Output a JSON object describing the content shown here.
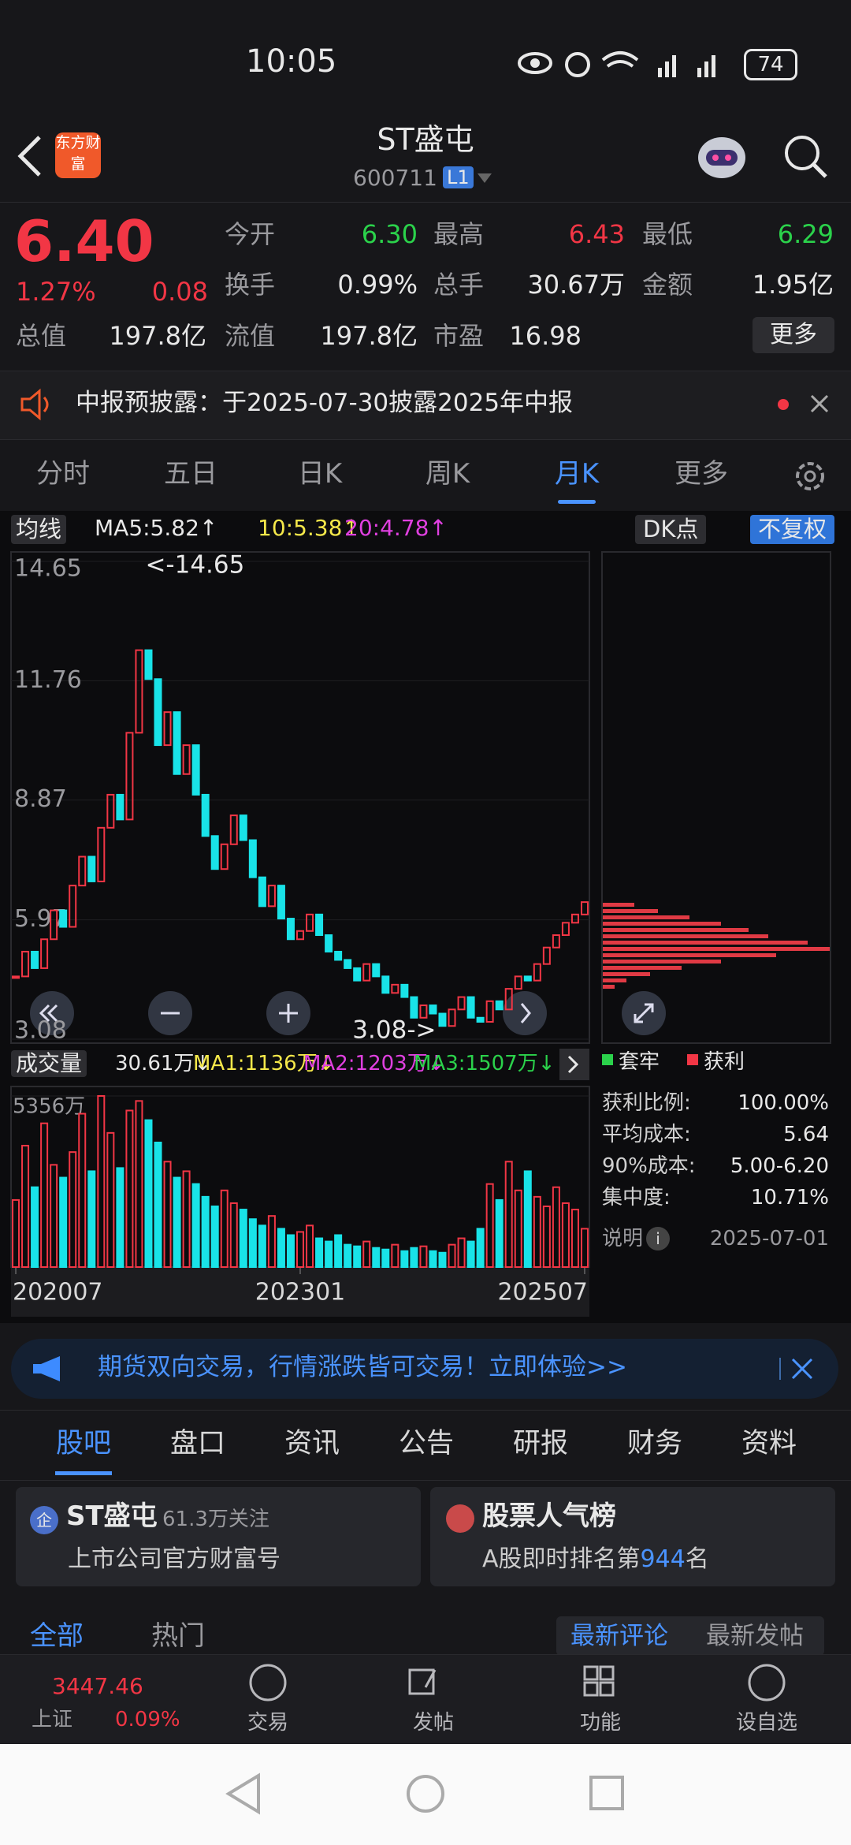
{
  "status_bar": {
    "time": "10:05",
    "battery": "74"
  },
  "header": {
    "logo": "东方财富",
    "title": "ST盛屯",
    "code": "600711",
    "level": "L1"
  },
  "quote": {
    "price": "6.40",
    "change_pct": "1.27%",
    "change": "0.08",
    "color": "#f23645",
    "stats": [
      {
        "label": "今开",
        "value": "6.30",
        "color": "#2bd24b"
      },
      {
        "label": "最高",
        "value": "6.43",
        "color": "#f23645"
      },
      {
        "label": "最低",
        "value": "6.29",
        "color": "#2bd24b"
      },
      {
        "label": "换手",
        "value": "0.99%",
        "color": "#e8e8e8"
      },
      {
        "label": "总手",
        "value": "30.67万",
        "color": "#e8e8e8"
      },
      {
        "label": "金额",
        "value": "1.95亿",
        "color": "#e8e8e8"
      },
      {
        "label": "总值",
        "value": "197.8亿",
        "color": "#e8e8e8"
      },
      {
        "label": "流值",
        "value": "197.8亿",
        "color": "#e8e8e8"
      },
      {
        "label": "市盈",
        "value": "16.98",
        "color": "#e8e8e8"
      }
    ],
    "more": "更多"
  },
  "notice": "中报预披露：于2025-07-30披露2025年中报",
  "period_tabs": [
    "分时",
    "五日",
    "日K",
    "周K",
    "月K",
    "更多"
  ],
  "active_period": 4,
  "indicators": {
    "ma_label": "均线",
    "ma5": "MA5:5.82↑",
    "ma10": "10:5.38↑",
    "ma20": "20:4.78↑",
    "dk": "DK点",
    "adjust": "不复权"
  },
  "chart": {
    "type": "candlestick",
    "ylim": [
      3.08,
      14.65
    ],
    "yticks": [
      14.65,
      11.76,
      8.87,
      5.97,
      3.08
    ],
    "high_note": "<-14.65",
    "low_note": "3.08->",
    "up_color": "#f23645",
    "down_color": "#19e3e8",
    "categories": [
      "202007",
      null,
      null,
      null,
      null,
      null,
      null,
      null,
      null,
      null,
      null,
      null,
      null,
      null,
      null,
      null,
      null,
      null,
      null,
      null,
      null,
      null,
      null,
      null,
      null,
      null,
      null,
      null,
      null,
      null,
      "202301",
      null,
      null,
      null,
      null,
      null,
      null,
      null,
      null,
      null,
      null,
      null,
      null,
      null,
      null,
      null,
      null,
      null,
      null,
      null,
      null,
      null,
      null,
      null,
      null,
      null,
      null,
      null,
      null,
      null,
      "202507"
    ],
    "close": [
      4.6,
      5.2,
      4.8,
      5.5,
      6.2,
      5.8,
      6.8,
      7.5,
      6.9,
      8.2,
      9.0,
      8.4,
      10.5,
      12.5,
      11.8,
      10.2,
      11.0,
      9.5,
      10.2,
      9.0,
      8.0,
      7.2,
      7.8,
      8.5,
      7.9,
      7.0,
      6.3,
      6.8,
      6.0,
      5.5,
      5.7,
      6.1,
      5.6,
      5.2,
      5.0,
      4.8,
      4.5,
      4.9,
      4.6,
      4.2,
      4.4,
      4.1,
      3.6,
      3.9,
      3.7,
      3.4,
      3.8,
      4.1,
      3.6,
      3.5,
      4.0,
      3.8,
      4.3,
      4.6,
      4.5,
      4.9,
      5.3,
      5.6,
      5.9,
      6.1,
      6.4
    ]
  },
  "volume": {
    "label": "成交量",
    "current": "30.61万↓",
    "ma1": "MA1:1136万↓",
    "ma2": "MA2:1203万↓",
    "ma3": "MA3:1507万↓",
    "ylim": [
      0,
      5356
    ],
    "yticks": [
      {
        "value": 5356,
        "label": "5356万"
      }
    ],
    "values": [
      2100,
      3800,
      2500,
      4500,
      3200,
      2800,
      3600,
      4800,
      3000,
      5356,
      4200,
      3100,
      4900,
      5200,
      4600,
      3900,
      3300,
      2800,
      3000,
      2600,
      2200,
      1900,
      2400,
      2000,
      1800,
      1500,
      1300,
      1600,
      1200,
      1000,
      1100,
      1300,
      900,
      800,
      1000,
      700,
      650,
      800,
      600,
      550,
      700,
      500,
      600,
      650,
      500,
      450,
      700,
      900,
      800,
      1200,
      2600,
      2100,
      3300,
      2400,
      3000,
      2200,
      1900,
      2500,
      2000,
      1800,
      1200
    ]
  },
  "chips": {
    "legend": [
      "套牢",
      "获利"
    ],
    "rows": [
      {
        "label": "获利比例:",
        "value": "100.00%"
      },
      {
        "label": "平均成本:",
        "value": "5.64"
      },
      {
        "label": "90%成本:",
        "value": "5.00-6.20"
      },
      {
        "label": "集中度:",
        "value": "10.71%"
      }
    ],
    "note": "说明",
    "date": "2025-07-01"
  },
  "ad": "期货双向交易，行情涨跌皆可交易！立即体验>>",
  "content_tabs": [
    "股吧",
    "盘口",
    "资讯",
    "公告",
    "研报",
    "财务",
    "资料"
  ],
  "cards": [
    {
      "badge": "企",
      "title": "ST盛屯",
      "meta": "61.3万关注",
      "desc": "上市公司官方财富号"
    },
    {
      "title": "股票人气榜",
      "desc_prefix": "A股即时排名第",
      "rank": "944",
      "desc_suffix": "名"
    }
  ],
  "feed_tabs": [
    "全部",
    "热门"
  ],
  "sort_tabs": [
    "最新评论",
    "最新发帖"
  ],
  "bottom_nav": {
    "index_value": "3447.46",
    "index_name": "上证",
    "index_change": "0.09%",
    "items": [
      "交易",
      "发帖",
      "功能",
      "设自选"
    ]
  }
}
